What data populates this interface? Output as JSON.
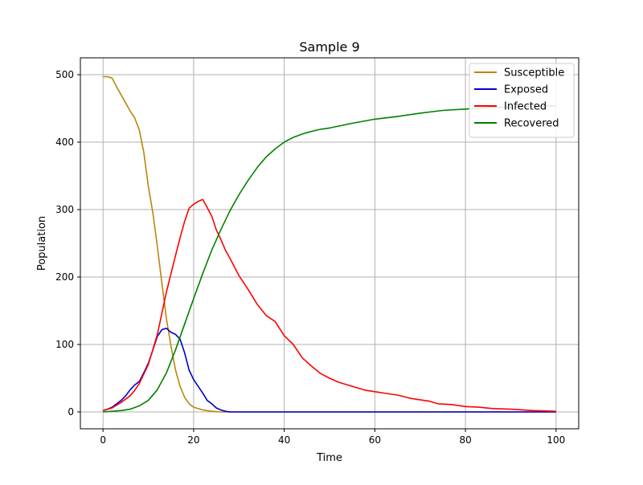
{
  "chart_data": {
    "type": "line",
    "title": "Sample 9",
    "xlabel": "Time",
    "ylabel": "Population",
    "xlim": [
      -5,
      105
    ],
    "ylim": [
      -25,
      525
    ],
    "xticks": [
      0,
      20,
      40,
      60,
      80,
      100
    ],
    "yticks": [
      0,
      100,
      200,
      300,
      400,
      500
    ],
    "grid": true,
    "legend_position": "top-right",
    "series": [
      {
        "name": "Susceptible",
        "color": "#b8860b",
        "points": [
          [
            0,
            497
          ],
          [
            1,
            497
          ],
          [
            2,
            495
          ],
          [
            3,
            482
          ],
          [
            4,
            470
          ],
          [
            5,
            458
          ],
          [
            6,
            446
          ],
          [
            7,
            436
          ],
          [
            8,
            418
          ],
          [
            9,
            385
          ],
          [
            10,
            335
          ],
          [
            11,
            295
          ],
          [
            12,
            245
          ],
          [
            13,
            190
          ],
          [
            14,
            138
          ],
          [
            15,
            98
          ],
          [
            16,
            62
          ],
          [
            17,
            38
          ],
          [
            18,
            22
          ],
          [
            19,
            12
          ],
          [
            20,
            7
          ],
          [
            22,
            3
          ],
          [
            24,
            1
          ],
          [
            26,
            0
          ],
          [
            100,
            0
          ]
        ]
      },
      {
        "name": "Exposed",
        "color": "#0000cc",
        "points": [
          [
            0,
            2
          ],
          [
            1,
            4
          ],
          [
            2,
            7
          ],
          [
            3,
            12
          ],
          [
            4,
            17
          ],
          [
            5,
            24
          ],
          [
            6,
            33
          ],
          [
            7,
            40
          ],
          [
            8,
            45
          ],
          [
            9,
            58
          ],
          [
            10,
            72
          ],
          [
            11,
            92
          ],
          [
            12,
            112
          ],
          [
            13,
            122
          ],
          [
            14,
            124
          ],
          [
            15,
            118
          ],
          [
            16,
            115
          ],
          [
            17,
            108
          ],
          [
            18,
            88
          ],
          [
            19,
            62
          ],
          [
            20,
            48
          ],
          [
            21,
            38
          ],
          [
            22,
            28
          ],
          [
            23,
            17
          ],
          [
            24,
            12
          ],
          [
            25,
            6
          ],
          [
            26,
            3
          ],
          [
            27,
            1
          ],
          [
            28,
            0
          ],
          [
            100,
            0
          ]
        ]
      },
      {
        "name": "Infected",
        "color": "#ff0000",
        "points": [
          [
            0,
            2
          ],
          [
            2,
            6
          ],
          [
            4,
            14
          ],
          [
            6,
            24
          ],
          [
            7,
            32
          ],
          [
            8,
            42
          ],
          [
            10,
            70
          ],
          [
            12,
            115
          ],
          [
            14,
            178
          ],
          [
            16,
            232
          ],
          [
            17,
            258
          ],
          [
            18,
            282
          ],
          [
            19,
            302
          ],
          [
            20,
            308
          ],
          [
            21,
            312
          ],
          [
            22,
            315
          ],
          [
            23,
            303
          ],
          [
            24,
            290
          ],
          [
            25,
            270
          ],
          [
            26,
            256
          ],
          [
            27,
            240
          ],
          [
            28,
            228
          ],
          [
            30,
            202
          ],
          [
            32,
            182
          ],
          [
            34,
            160
          ],
          [
            36,
            143
          ],
          [
            38,
            134
          ],
          [
            40,
            113
          ],
          [
            42,
            100
          ],
          [
            44,
            80
          ],
          [
            46,
            68
          ],
          [
            48,
            57
          ],
          [
            50,
            50
          ],
          [
            52,
            44
          ],
          [
            55,
            38
          ],
          [
            58,
            32
          ],
          [
            60,
            30
          ],
          [
            62,
            28
          ],
          [
            65,
            25
          ],
          [
            68,
            20
          ],
          [
            70,
            18
          ],
          [
            72,
            16
          ],
          [
            74,
            12
          ],
          [
            77,
            11
          ],
          [
            80,
            8
          ],
          [
            83,
            7
          ],
          [
            86,
            5
          ],
          [
            90,
            4
          ],
          [
            95,
            2
          ],
          [
            100,
            1
          ]
        ]
      },
      {
        "name": "Recovered",
        "color": "#008000",
        "points": [
          [
            0,
            0
          ],
          [
            2,
            1
          ],
          [
            4,
            2
          ],
          [
            6,
            4
          ],
          [
            8,
            9
          ],
          [
            10,
            17
          ],
          [
            12,
            33
          ],
          [
            14,
            58
          ],
          [
            16,
            92
          ],
          [
            18,
            130
          ],
          [
            20,
            168
          ],
          [
            22,
            205
          ],
          [
            24,
            240
          ],
          [
            26,
            270
          ],
          [
            28,
            298
          ],
          [
            30,
            322
          ],
          [
            32,
            343
          ],
          [
            34,
            362
          ],
          [
            36,
            378
          ],
          [
            38,
            390
          ],
          [
            40,
            400
          ],
          [
            42,
            407
          ],
          [
            44,
            412
          ],
          [
            46,
            416
          ],
          [
            48,
            419
          ],
          [
            50,
            421
          ],
          [
            55,
            428
          ],
          [
            60,
            434
          ],
          [
            65,
            438
          ],
          [
            70,
            443
          ],
          [
            75,
            447
          ],
          [
            80,
            449
          ],
          [
            85,
            451
          ],
          [
            90,
            452
          ],
          [
            95,
            453
          ],
          [
            100,
            454
          ]
        ]
      }
    ]
  }
}
